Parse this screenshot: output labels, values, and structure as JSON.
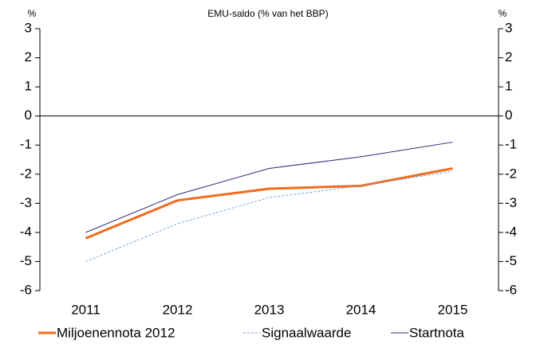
{
  "chart_data": {
    "type": "line",
    "title": "EMU-saldo (% van het BBP)",
    "y_label": "%",
    "y2_label": "%",
    "categories": [
      "2011",
      "2012",
      "2013",
      "2014",
      "2015"
    ],
    "series": [
      {
        "name": "Miljoenennota 2012",
        "color": "#f26b1d",
        "values": [
          -4.2,
          -2.9,
          -2.5,
          -2.4,
          -1.8
        ]
      },
      {
        "name": "Signaalwaarde",
        "color": "#7fa6d4",
        "values": [
          -5.0,
          -3.7,
          -2.8,
          -2.4,
          -1.9
        ]
      },
      {
        "name": "Startnota",
        "color": "#2b2a7a",
        "values": [
          -4.0,
          -2.7,
          -1.8,
          -1.4,
          -0.9
        ]
      }
    ],
    "ylim": [
      -6,
      3
    ],
    "yticks": [
      -6,
      -5,
      -4,
      -3,
      -2,
      -1,
      0,
      1,
      2,
      3
    ],
    "y2lim": [
      -6,
      3
    ],
    "y2ticks": [
      -6,
      -5,
      -4,
      -3,
      -2,
      -1,
      0,
      1,
      2,
      3
    ]
  }
}
